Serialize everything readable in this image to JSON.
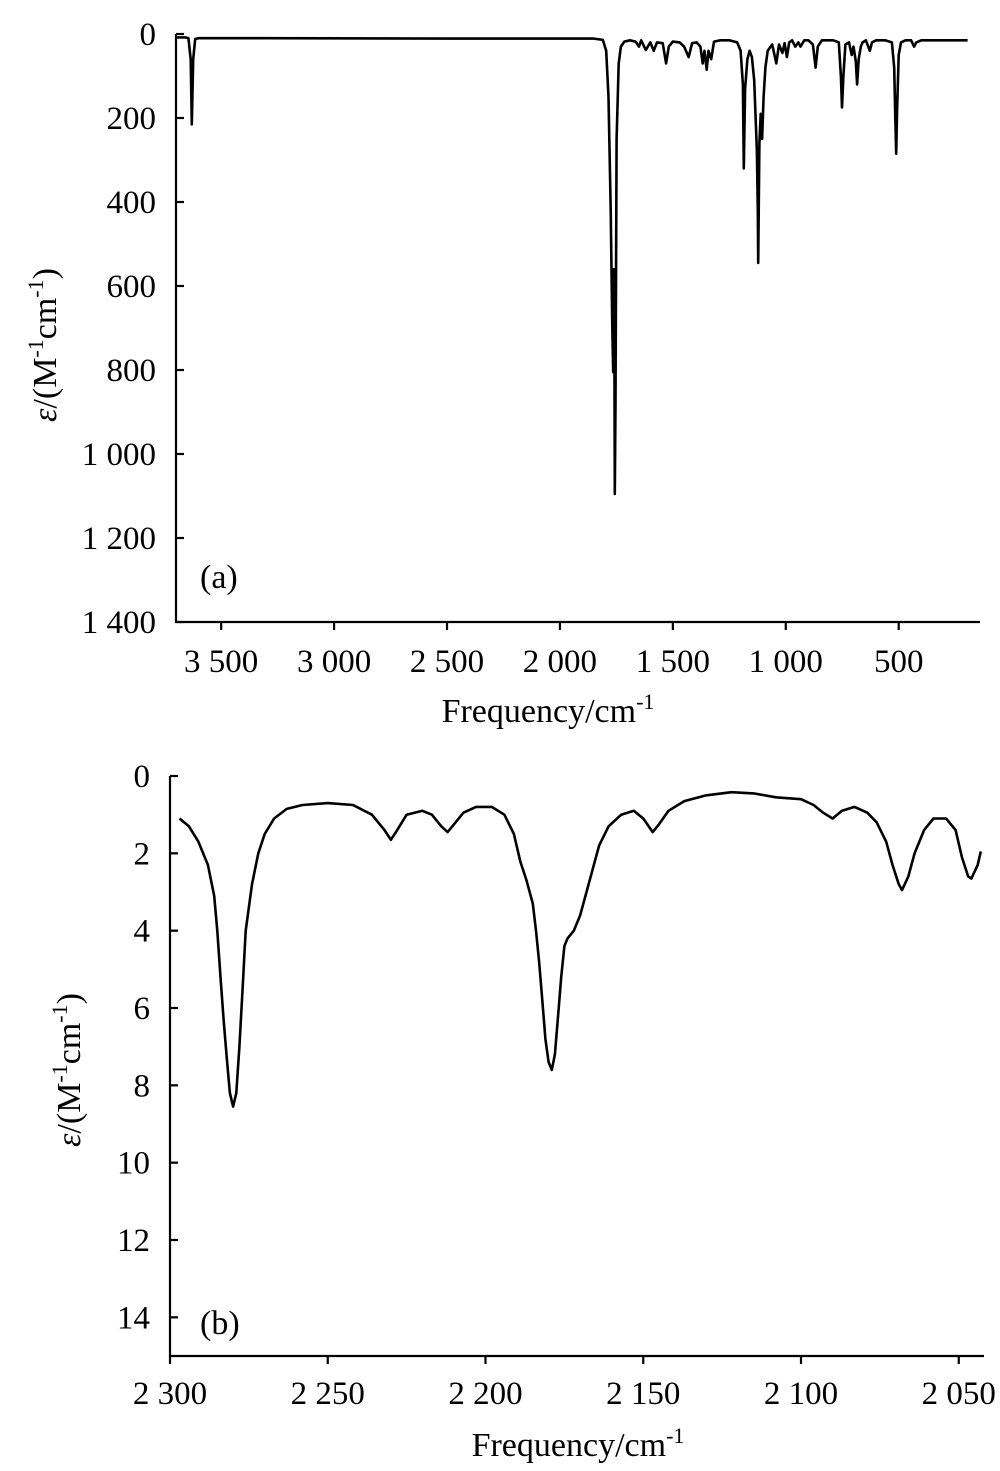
{
  "chart_data": [
    {
      "type": "line",
      "panel_label": "(a)",
      "xlabel": "Frequency/cm",
      "xlabel_sup": "-1",
      "ylabel_prefix": "ε/(M",
      "ylabel_mid": "cm",
      "ylabel_suffix": ")",
      "ylabel_sup": "-1",
      "xlim": [
        3700,
        140
      ],
      "ylim": [
        0,
        1400
      ],
      "y_inverted": true,
      "grid": false,
      "xticks": [
        3500,
        3000,
        2500,
        2000,
        1500,
        1000,
        500
      ],
      "xtick_labels": [
        "3 500",
        "3 000",
        "2 500",
        "2 000",
        "1 500",
        "1 000",
        "500"
      ],
      "yticks": [
        0,
        200,
        400,
        600,
        800,
        1000,
        1200,
        1400
      ],
      "ytick_labels": [
        "0",
        "200",
        "400",
        "600",
        "800",
        "1 000",
        "1 200",
        "1 400"
      ],
      "series": [
        {
          "points": [
            [
              3695,
              8
            ],
            [
              3660,
              8
            ],
            [
              3645,
              10
            ],
            [
              3635,
              60
            ],
            [
              3630,
              215
            ],
            [
              3624,
              60
            ],
            [
              3615,
              12
            ],
            [
              3600,
              10
            ],
            [
              3300,
              10
            ],
            [
              2500,
              11
            ],
            [
              2000,
              11
            ],
            [
              1850,
              11
            ],
            [
              1810,
              14
            ],
            [
              1795,
              40
            ],
            [
              1785,
              150
            ],
            [
              1775,
              420
            ],
            [
              1768,
              700
            ],
            [
              1764,
              805
            ],
            [
              1762,
              560
            ],
            [
              1759,
              740
            ],
            [
              1757,
              1095
            ],
            [
              1754,
              880
            ],
            [
              1749,
              250
            ],
            [
              1740,
              70
            ],
            [
              1730,
              30
            ],
            [
              1715,
              18
            ],
            [
              1690,
              15
            ],
            [
              1665,
              18
            ],
            [
              1650,
              30
            ],
            [
              1640,
              15
            ],
            [
              1620,
              38
            ],
            [
              1600,
              20
            ],
            [
              1585,
              40
            ],
            [
              1570,
              20
            ],
            [
              1545,
              22
            ],
            [
              1530,
              70
            ],
            [
              1518,
              30
            ],
            [
              1500,
              18
            ],
            [
              1470,
              20
            ],
            [
              1450,
              30
            ],
            [
              1430,
              55
            ],
            [
              1415,
              22
            ],
            [
              1395,
              20
            ],
            [
              1378,
              30
            ],
            [
              1368,
              70
            ],
            [
              1360,
              40
            ],
            [
              1350,
              85
            ],
            [
              1342,
              40
            ],
            [
              1330,
              60
            ],
            [
              1318,
              18
            ],
            [
              1290,
              15
            ],
            [
              1250,
              15
            ],
            [
              1215,
              20
            ],
            [
              1200,
              40
            ],
            [
              1190,
              120
            ],
            [
              1186,
              320
            ],
            [
              1180,
              130
            ],
            [
              1170,
              60
            ],
            [
              1160,
              40
            ],
            [
              1150,
              55
            ],
            [
              1140,
              110
            ],
            [
              1128,
              280
            ],
            [
              1124,
              420
            ],
            [
              1122,
              545
            ],
            [
              1117,
              260
            ],
            [
              1111,
              190
            ],
            [
              1105,
              250
            ],
            [
              1098,
              150
            ],
            [
              1090,
              80
            ],
            [
              1080,
              40
            ],
            [
              1060,
              25
            ],
            [
              1042,
              70
            ],
            [
              1030,
              25
            ],
            [
              1015,
              45
            ],
            [
              1005,
              22
            ],
            [
              995,
              55
            ],
            [
              985,
              20
            ],
            [
              972,
              15
            ],
            [
              958,
              30
            ],
            [
              944,
              20
            ],
            [
              935,
              30
            ],
            [
              918,
              15
            ],
            [
              900,
              15
            ],
            [
              880,
              25
            ],
            [
              868,
              80
            ],
            [
              858,
              30
            ],
            [
              840,
              15
            ],
            [
              790,
              15
            ],
            [
              765,
              20
            ],
            [
              756,
              100
            ],
            [
              751,
              175
            ],
            [
              745,
              100
            ],
            [
              736,
              25
            ],
            [
              720,
              20
            ],
            [
              708,
              50
            ],
            [
              700,
              30
            ],
            [
              690,
              65
            ],
            [
              684,
              120
            ],
            [
              677,
              60
            ],
            [
              668,
              30
            ],
            [
              660,
              20
            ],
            [
              645,
              15
            ],
            [
              628,
              40
            ],
            [
              618,
              20
            ],
            [
              600,
              15
            ],
            [
              560,
              15
            ],
            [
              530,
              20
            ],
            [
              520,
              80
            ],
            [
              515,
              200
            ],
            [
              511,
              285
            ],
            [
              507,
              180
            ],
            [
              500,
              50
            ],
            [
              490,
              20
            ],
            [
              470,
              15
            ],
            [
              445,
              15
            ],
            [
              432,
              30
            ],
            [
              422,
              20
            ],
            [
              400,
              15
            ],
            [
              340,
              15
            ],
            [
              195,
              15
            ]
          ]
        }
      ]
    },
    {
      "type": "line",
      "panel_label": "(b)",
      "xlabel": "Frequency/cm",
      "xlabel_sup": "-1",
      "ylabel_prefix": "ε/(M",
      "ylabel_mid": "cm",
      "ylabel_suffix": ")",
      "ylabel_sup": "-1",
      "xlim": [
        2300,
        2042
      ],
      "ylim": [
        0,
        15
      ],
      "y_inverted": true,
      "grid": false,
      "xticks": [
        2300,
        2250,
        2200,
        2150,
        2100,
        2050
      ],
      "xtick_labels": [
        "2 300",
        "2 250",
        "2 200",
        "2 150",
        "2 100",
        "2 050"
      ],
      "yticks": [
        0,
        2,
        4,
        6,
        8,
        10,
        12,
        14
      ],
      "ytick_labels": [
        "0",
        "2",
        "4",
        "6",
        "8",
        "10",
        "12",
        "14"
      ],
      "series": [
        {
          "points": [
            [
              2297,
              1.1
            ],
            [
              2294,
              1.3
            ],
            [
              2291,
              1.7
            ],
            [
              2288,
              2.3
            ],
            [
              2286,
              3.1
            ],
            [
              2285,
              4.0
            ],
            [
              2284,
              5.2
            ],
            [
              2283,
              6.3
            ],
            [
              2282,
              7.3
            ],
            [
              2281,
              8.2
            ],
            [
              2280,
              8.55
            ],
            [
              2279,
              8.2
            ],
            [
              2278,
              7.0
            ],
            [
              2277,
              5.5
            ],
            [
              2276,
              4.0
            ],
            [
              2274,
              2.8
            ],
            [
              2272,
              2.0
            ],
            [
              2270,
              1.5
            ],
            [
              2267,
              1.1
            ],
            [
              2263,
              0.85
            ],
            [
              2258,
              0.75
            ],
            [
              2250,
              0.7
            ],
            [
              2242,
              0.75
            ],
            [
              2236,
              1.0
            ],
            [
              2232,
              1.4
            ],
            [
              2230,
              1.65
            ],
            [
              2228,
              1.4
            ],
            [
              2225,
              1.0
            ],
            [
              2220,
              0.9
            ],
            [
              2217,
              1.0
            ],
            [
              2214,
              1.3
            ],
            [
              2212,
              1.45
            ],
            [
              2210,
              1.25
            ],
            [
              2207,
              0.95
            ],
            [
              2203,
              0.8
            ],
            [
              2198,
              0.8
            ],
            [
              2194,
              1.0
            ],
            [
              2191,
              1.5
            ],
            [
              2189,
              2.2
            ],
            [
              2187,
              2.7
            ],
            [
              2185,
              3.3
            ],
            [
              2184,
              4.0
            ],
            [
              2183,
              4.8
            ],
            [
              2182,
              5.8
            ],
            [
              2181,
              6.8
            ],
            [
              2180,
              7.4
            ],
            [
              2179,
              7.6
            ],
            [
              2178,
              7.2
            ],
            [
              2177,
              6.2
            ],
            [
              2176,
              5.2
            ],
            [
              2175,
              4.4
            ],
            [
              2174,
              4.2
            ],
            [
              2172,
              4.0
            ],
            [
              2170,
              3.6
            ],
            [
              2168,
              3.0
            ],
            [
              2166,
              2.4
            ],
            [
              2164,
              1.8
            ],
            [
              2161,
              1.3
            ],
            [
              2157,
              1.0
            ],
            [
              2153,
              0.9
            ],
            [
              2150,
              1.1
            ],
            [
              2147,
              1.45
            ],
            [
              2145,
              1.25
            ],
            [
              2142,
              0.9
            ],
            [
              2137,
              0.65
            ],
            [
              2130,
              0.5
            ],
            [
              2122,
              0.42
            ],
            [
              2115,
              0.45
            ],
            [
              2108,
              0.55
            ],
            [
              2100,
              0.6
            ],
            [
              2096,
              0.75
            ],
            [
              2093,
              0.95
            ],
            [
              2090,
              1.1
            ],
            [
              2087,
              0.9
            ],
            [
              2083,
              0.8
            ],
            [
              2079,
              0.95
            ],
            [
              2076,
              1.2
            ],
            [
              2073,
              1.7
            ],
            [
              2071,
              2.3
            ],
            [
              2069,
              2.8
            ],
            [
              2068,
              2.95
            ],
            [
              2066,
              2.6
            ],
            [
              2064,
              2.0
            ],
            [
              2061,
              1.4
            ],
            [
              2058,
              1.1
            ],
            [
              2054,
              1.1
            ],
            [
              2051,
              1.4
            ],
            [
              2049,
              2.1
            ],
            [
              2047,
              2.6
            ],
            [
              2046,
              2.65
            ],
            [
              2044,
              2.3
            ],
            [
              2043,
              1.95
            ]
          ]
        }
      ]
    }
  ]
}
